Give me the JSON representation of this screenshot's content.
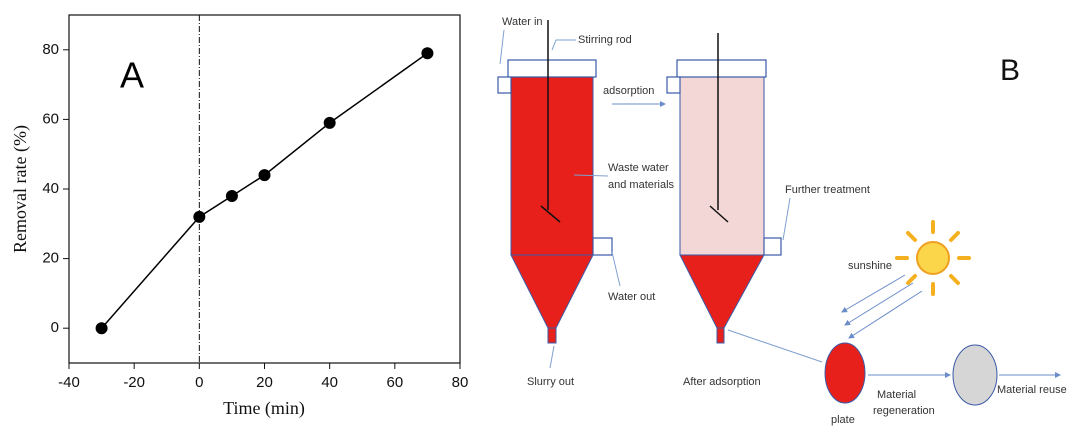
{
  "chart_data": {
    "type": "line",
    "panel_label": "A",
    "x_label": "Time (min)",
    "y_label": "Removal rate (%)",
    "x": [
      -30,
      0,
      10,
      20,
      40,
      70
    ],
    "series": [
      {
        "color": "#000000",
        "values": [
          0,
          32,
          38,
          44,
          59,
          79
        ]
      }
    ],
    "xlim": [
      -40,
      80
    ],
    "xticks": [
      -40,
      -20,
      0,
      20,
      40,
      60,
      80
    ],
    "ylim": [
      -10,
      90
    ],
    "yticks": [
      0,
      20,
      40,
      60,
      80
    ],
    "vline": 0
  },
  "diagram": {
    "panel_label": "B",
    "labels": {
      "water_in": "Water in",
      "stirring_rod": "Stirring rod",
      "adsorption": "adsorption",
      "waste_water": [
        "Waste water",
        "and materials"
      ],
      "further_treatment": "Further treatment",
      "water_out": "Water out",
      "sunshine": "sunshine",
      "slurry_out": "Slurry out",
      "after_adsorption": "After adsorption",
      "material_regeneration": [
        "Material",
        "regeneration"
      ],
      "plate": "plate",
      "material_reuse": "Material reuse"
    }
  }
}
